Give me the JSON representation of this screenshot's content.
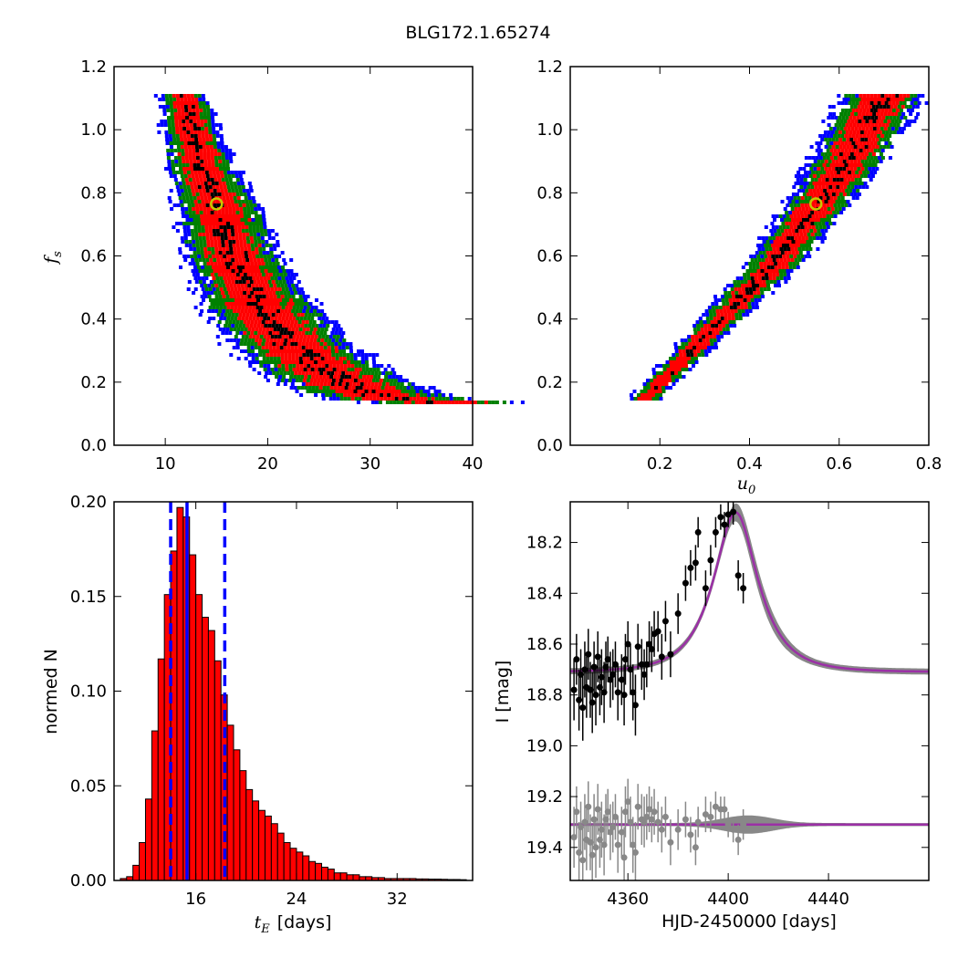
{
  "figure": {
    "title": "BLG172.1.65274"
  },
  "colors": {
    "sigma3": "#0000ff",
    "sigma2": "#008000",
    "sigma1": "#ff0000",
    "core": "#000000",
    "best_fit_marker": "#c8c800",
    "hist_bar": "#ff0000",
    "vline": "#0000ff",
    "model": "#9b30a6",
    "model_band": "#888888",
    "data_points": "#000000",
    "residual_points": "#888888"
  },
  "chart_data": [
    {
      "id": "fs_vs_tE",
      "type": "heatmap",
      "xlim": [
        5,
        40
      ],
      "ylim": [
        0.0,
        1.2
      ],
      "xticks": [
        "10",
        "20",
        "30",
        "40"
      ],
      "yticks": [
        "0.0",
        "0.2",
        "0.4",
        "0.6",
        "0.8",
        "1.0",
        "1.2"
      ],
      "xlabel": "",
      "ylabel": "f_s",
      "ylabel_display": "fs",
      "best_fit": {
        "x": 15.0,
        "y": 0.765
      },
      "ridge": [
        [
          11.5,
          1.12
        ],
        [
          12.5,
          1.0
        ],
        [
          13.5,
          0.88
        ],
        [
          15.0,
          0.765
        ],
        [
          16.5,
          0.6
        ],
        [
          19.0,
          0.45
        ],
        [
          22.0,
          0.33
        ],
        [
          25.5,
          0.24
        ],
        [
          29.0,
          0.18
        ],
        [
          33.0,
          0.15
        ],
        [
          37.5,
          0.14
        ]
      ],
      "levels": [
        "sigma3",
        "sigma2",
        "sigma1",
        "core"
      ]
    },
    {
      "id": "fs_vs_u0",
      "type": "heatmap",
      "xlim": [
        0.0,
        0.8
      ],
      "ylim": [
        0.0,
        1.2
      ],
      "xticks": [
        "0.2",
        "0.4",
        "0.6",
        "0.8"
      ],
      "yticks": [
        "0.0",
        "0.2",
        "0.4",
        "0.6",
        "0.8",
        "1.0",
        "1.2"
      ],
      "xlabel": "u_0",
      "xlabel_display": "u0",
      "ylabel": "",
      "best_fit": {
        "x": 0.548,
        "y": 0.765
      },
      "ridge": [
        [
          0.16,
          0.15
        ],
        [
          0.25,
          0.28
        ],
        [
          0.35,
          0.43
        ],
        [
          0.45,
          0.58
        ],
        [
          0.548,
          0.765
        ],
        [
          0.62,
          0.92
        ],
        [
          0.7,
          1.12
        ]
      ],
      "levels": [
        "sigma3",
        "sigma2",
        "sigma1",
        "core"
      ]
    },
    {
      "id": "tE_histogram",
      "type": "bar",
      "xlim": [
        9.5,
        38
      ],
      "ylim": [
        0.0,
        0.2
      ],
      "xticks": [
        "16",
        "24",
        "32"
      ],
      "yticks": [
        "0.00",
        "0.05",
        "0.10",
        "0.15",
        "0.20"
      ],
      "xlabel": "t_E  [days]",
      "xlabel_symbol": "t",
      "xlabel_subscript": "E",
      "xlabel_unit": "[days]",
      "ylabel": "normed N",
      "bin_start": 10.0,
      "bin_width": 0.5,
      "values": [
        0.001,
        0.002,
        0.008,
        0.02,
        0.043,
        0.079,
        0.117,
        0.151,
        0.174,
        0.197,
        0.192,
        0.172,
        0.151,
        0.139,
        0.132,
        0.116,
        0.098,
        0.082,
        0.069,
        0.058,
        0.048,
        0.042,
        0.037,
        0.034,
        0.03,
        0.025,
        0.02,
        0.017,
        0.015,
        0.013,
        0.01,
        0.009,
        0.007,
        0.006,
        0.004,
        0.004,
        0.003,
        0.003,
        0.002,
        0.002,
        0.0015,
        0.0015,
        0.001,
        0.001,
        0.001,
        0.001,
        0.001,
        0.0008,
        0.0008,
        0.0007,
        0.0007,
        0.0006,
        0.0005,
        0.0005,
        0.0004
      ],
      "median": 15.3,
      "lower": 14.0,
      "upper": 18.3
    },
    {
      "id": "light_curve",
      "type": "scatter",
      "xlim": [
        4337,
        4480
      ],
      "ylim": [
        19.53,
        18.04
      ],
      "xticks": [
        "4360",
        "4400",
        "4440"
      ],
      "yticks": [
        "18.2",
        "18.4",
        "18.6",
        "18.8",
        "19.0",
        "19.2",
        "19.4"
      ],
      "xlabel": "HJD-2450000 [days]",
      "ylabel": "I [mag]",
      "model": {
        "t0": 4403.0,
        "u0": 0.548,
        "tE": 15.0,
        "baseline": 18.71,
        "fs": 0.765
      },
      "residual_baseline": 19.31,
      "points": [
        [
          4338.5,
          18.78,
          0.12
        ],
        [
          4339.5,
          18.66,
          0.1
        ],
        [
          4340.5,
          18.82,
          0.12
        ],
        [
          4341.2,
          18.72,
          0.1
        ],
        [
          4342.0,
          18.85,
          0.13
        ],
        [
          4342.8,
          18.7,
          0.11
        ],
        [
          4343.5,
          18.77,
          0.12
        ],
        [
          4344.2,
          18.64,
          0.1
        ],
        [
          4345.0,
          18.78,
          0.11
        ],
        [
          4345.8,
          18.83,
          0.12
        ],
        [
          4346.5,
          18.69,
          0.1
        ],
        [
          4347.2,
          18.8,
          0.12
        ],
        [
          4348.0,
          18.65,
          0.1
        ],
        [
          4348.8,
          18.77,
          0.11
        ],
        [
          4349.5,
          18.73,
          0.11
        ],
        [
          4350.5,
          18.79,
          0.12
        ],
        [
          4351.2,
          18.69,
          0.1
        ],
        [
          4352.0,
          18.66,
          0.09
        ],
        [
          4353.0,
          18.74,
          0.11
        ],
        [
          4354.0,
          18.72,
          0.1
        ],
        [
          4355.0,
          18.68,
          0.09
        ],
        [
          4356.0,
          18.79,
          0.11
        ],
        [
          4357.5,
          18.74,
          0.1
        ],
        [
          4358.5,
          18.8,
          0.12
        ],
        [
          4359.0,
          18.66,
          0.1
        ],
        [
          4360.0,
          18.6,
          0.09
        ],
        [
          4361.0,
          18.7,
          0.1
        ],
        [
          4362.0,
          18.79,
          0.11
        ],
        [
          4363.0,
          18.84,
          0.12
        ],
        [
          4364.0,
          18.61,
          0.09
        ],
        [
          4365.5,
          18.68,
          0.1
        ],
        [
          4366.5,
          18.72,
          0.1
        ],
        [
          4367.5,
          18.68,
          0.09
        ],
        [
          4368.5,
          18.6,
          0.09
        ],
        [
          4369.5,
          18.62,
          0.09
        ],
        [
          4370.5,
          18.56,
          0.09
        ],
        [
          4372.0,
          18.55,
          0.08
        ],
        [
          4373.5,
          18.65,
          0.09
        ],
        [
          4375.0,
          18.51,
          0.08
        ],
        [
          4377.0,
          18.64,
          0.09
        ],
        [
          4380.0,
          18.48,
          0.08
        ],
        [
          4383.0,
          18.36,
          0.07
        ],
        [
          4385.0,
          18.3,
          0.07
        ],
        [
          4387.0,
          18.28,
          0.07
        ],
        [
          4388.0,
          18.16,
          0.06
        ],
        [
          4391.0,
          18.38,
          0.07
        ],
        [
          4393.0,
          18.27,
          0.06
        ],
        [
          4395.0,
          18.16,
          0.06
        ],
        [
          4397.0,
          18.1,
          0.05
        ],
        [
          4398.5,
          18.13,
          0.05
        ],
        [
          4400.0,
          18.09,
          0.05
        ],
        [
          4402.0,
          18.08,
          0.05
        ],
        [
          4404.0,
          18.33,
          0.06
        ],
        [
          4406.0,
          18.38,
          0.06
        ]
      ],
      "residuals": [
        [
          4338.5,
          19.36,
          0.12
        ],
        [
          4339.5,
          19.26,
          0.1
        ],
        [
          4340.5,
          19.42,
          0.12
        ],
        [
          4341.2,
          19.32,
          0.1
        ],
        [
          4342.0,
          19.45,
          0.13
        ],
        [
          4342.8,
          19.3,
          0.11
        ],
        [
          4343.5,
          19.37,
          0.12
        ],
        [
          4344.2,
          19.24,
          0.1
        ],
        [
          4345.0,
          19.38,
          0.11
        ],
        [
          4345.8,
          19.43,
          0.12
        ],
        [
          4346.5,
          19.29,
          0.1
        ],
        [
          4347.2,
          19.4,
          0.12
        ],
        [
          4348.0,
          19.25,
          0.1
        ],
        [
          4348.8,
          19.37,
          0.11
        ],
        [
          4349.5,
          19.33,
          0.11
        ],
        [
          4350.5,
          19.39,
          0.12
        ],
        [
          4351.2,
          19.29,
          0.1
        ],
        [
          4352.0,
          19.26,
          0.09
        ],
        [
          4353.0,
          19.34,
          0.11
        ],
        [
          4354.0,
          19.32,
          0.1
        ],
        [
          4355.0,
          19.28,
          0.09
        ],
        [
          4356.0,
          19.39,
          0.11
        ],
        [
          4357.5,
          19.34,
          0.1
        ],
        [
          4358.5,
          19.44,
          0.12
        ],
        [
          4359.0,
          19.26,
          0.1
        ],
        [
          4360.0,
          19.22,
          0.09
        ],
        [
          4361.0,
          19.3,
          0.1
        ],
        [
          4362.0,
          19.39,
          0.11
        ],
        [
          4363.0,
          19.42,
          0.12
        ],
        [
          4364.0,
          19.24,
          0.09
        ],
        [
          4365.5,
          19.29,
          0.1
        ],
        [
          4366.5,
          19.3,
          0.1
        ],
        [
          4367.5,
          19.28,
          0.09
        ],
        [
          4368.5,
          19.25,
          0.09
        ],
        [
          4369.5,
          19.29,
          0.09
        ],
        [
          4370.5,
          19.26,
          0.09
        ],
        [
          4372.0,
          19.3,
          0.08
        ],
        [
          4373.5,
          19.33,
          0.09
        ],
        [
          4375.0,
          19.28,
          0.08
        ],
        [
          4377.0,
          19.38,
          0.09
        ],
        [
          4380.0,
          19.33,
          0.08
        ],
        [
          4383.0,
          19.29,
          0.07
        ],
        [
          4385.0,
          19.35,
          0.07
        ],
        [
          4387.0,
          19.4,
          0.07
        ],
        [
          4388.0,
          19.3,
          0.06
        ],
        [
          4391.0,
          19.27,
          0.07
        ],
        [
          4393.0,
          19.28,
          0.06
        ],
        [
          4395.0,
          19.24,
          0.06
        ],
        [
          4397.0,
          19.25,
          0.05
        ],
        [
          4398.5,
          19.25,
          0.05
        ],
        [
          4400.0,
          19.31,
          0.05
        ],
        [
          4402.0,
          19.33,
          0.05
        ],
        [
          4404.0,
          19.37,
          0.06
        ],
        [
          4406.0,
          19.31,
          0.06
        ]
      ]
    }
  ]
}
